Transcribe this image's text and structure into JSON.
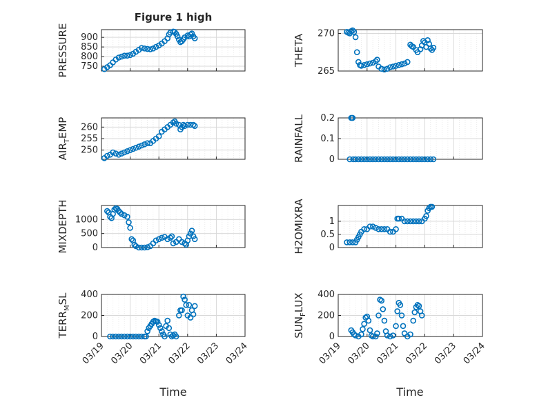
{
  "figure": {
    "title": "Figure 1 high",
    "xlabel": "Time"
  },
  "colors": {
    "series": "#0072bd",
    "axis": "#262626"
  },
  "x_ticks": [
    "03/19",
    "03/20",
    "03/21",
    "03/22",
    "03/23",
    "03/24"
  ],
  "chart_data": [
    {
      "type": "scatter",
      "ylabel": "PRESSURE",
      "xlim": [
        0,
        5
      ],
      "ylim": [
        725,
        940
      ],
      "yticks": [
        750,
        800,
        850,
        900
      ],
      "ytick_labels": [
        "750",
        "800",
        "850",
        "900"
      ],
      "points": [
        [
          0.1,
          735
        ],
        [
          0.2,
          745
        ],
        [
          0.3,
          755
        ],
        [
          0.4,
          770
        ],
        [
          0.5,
          785
        ],
        [
          0.6,
          795
        ],
        [
          0.7,
          800
        ],
        [
          0.8,
          805
        ],
        [
          0.9,
          805
        ],
        [
          1.0,
          808
        ],
        [
          1.1,
          815
        ],
        [
          1.2,
          825
        ],
        [
          1.3,
          835
        ],
        [
          1.4,
          845
        ],
        [
          1.5,
          842
        ],
        [
          1.6,
          840
        ],
        [
          1.7,
          838
        ],
        [
          1.8,
          842
        ],
        [
          1.9,
          850
        ],
        [
          2.0,
          858
        ],
        [
          2.1,
          868
        ],
        [
          2.2,
          880
        ],
        [
          2.3,
          895
        ],
        [
          2.35,
          915
        ],
        [
          2.4,
          925
        ],
        [
          2.5,
          930
        ],
        [
          2.55,
          928
        ],
        [
          2.6,
          918
        ],
        [
          2.65,
          905
        ],
        [
          2.7,
          888
        ],
        [
          2.75,
          875
        ],
        [
          2.8,
          880
        ],
        [
          2.85,
          890
        ],
        [
          2.9,
          900
        ],
        [
          3.0,
          910
        ],
        [
          3.05,
          905
        ],
        [
          3.1,
          915
        ],
        [
          3.15,
          920
        ],
        [
          3.2,
          905
        ],
        [
          3.25,
          895
        ]
      ]
    },
    {
      "type": "scatter",
      "ylabel": "THETA",
      "xlim": [
        0,
        5
      ],
      "ylim": [
        265,
        270.5
      ],
      "yticks": [
        265,
        270
      ],
      "ytick_labels": [
        "265",
        "270"
      ],
      "points": [
        [
          0.3,
          270.2
        ],
        [
          0.35,
          270.1
        ],
        [
          0.4,
          270.0
        ],
        [
          0.45,
          270.3
        ],
        [
          0.5,
          270.4
        ],
        [
          0.55,
          270.2
        ],
        [
          0.6,
          269.5
        ],
        [
          0.65,
          267.5
        ],
        [
          0.7,
          266.2
        ],
        [
          0.75,
          265.8
        ],
        [
          0.8,
          265.7
        ],
        [
          0.9,
          265.8
        ],
        [
          1.0,
          265.9
        ],
        [
          1.1,
          266.0
        ],
        [
          1.2,
          266.1
        ],
        [
          1.3,
          266.3
        ],
        [
          1.35,
          266.5
        ],
        [
          1.4,
          265.6
        ],
        [
          1.5,
          265.3
        ],
        [
          1.6,
          265.2
        ],
        [
          1.7,
          265.3
        ],
        [
          1.8,
          265.5
        ],
        [
          1.9,
          265.6
        ],
        [
          2.0,
          265.7
        ],
        [
          2.1,
          265.8
        ],
        [
          2.2,
          265.9
        ],
        [
          2.3,
          266.0
        ],
        [
          2.4,
          266.2
        ],
        [
          2.5,
          268.5
        ],
        [
          2.55,
          268.3
        ],
        [
          2.6,
          268.2
        ],
        [
          2.7,
          267.8
        ],
        [
          2.75,
          267.5
        ],
        [
          2.85,
          267.9
        ],
        [
          2.9,
          268.4
        ],
        [
          2.95,
          269.0
        ],
        [
          3.0,
          268.8
        ],
        [
          3.05,
          268.2
        ],
        [
          3.1,
          269.1
        ],
        [
          3.15,
          268.6
        ],
        [
          3.2,
          268.0
        ],
        [
          3.25,
          267.8
        ],
        [
          3.3,
          268.1
        ]
      ]
    },
    {
      "type": "scatter",
      "ylabel": "AIR_TEMP",
      "xlim": [
        0,
        5
      ],
      "ylim": [
        246,
        264
      ],
      "yticks": [
        250,
        255,
        260
      ],
      "ytick_labels": [
        "250",
        "255",
        "260"
      ],
      "points": [
        [
          0.1,
          246.5
        ],
        [
          0.2,
          247.5
        ],
        [
          0.3,
          248
        ],
        [
          0.4,
          249
        ],
        [
          0.5,
          248.5
        ],
        [
          0.6,
          248
        ],
        [
          0.7,
          248.5
        ],
        [
          0.8,
          249
        ],
        [
          0.9,
          249.5
        ],
        [
          1.0,
          250
        ],
        [
          1.1,
          250.5
        ],
        [
          1.2,
          251
        ],
        [
          1.3,
          251.5
        ],
        [
          1.4,
          252
        ],
        [
          1.5,
          252.5
        ],
        [
          1.6,
          253
        ],
        [
          1.7,
          253
        ],
        [
          1.8,
          254
        ],
        [
          1.9,
          255
        ],
        [
          2.0,
          256
        ],
        [
          2.1,
          258
        ],
        [
          2.2,
          259
        ],
        [
          2.3,
          260
        ],
        [
          2.4,
          261
        ],
        [
          2.5,
          262
        ],
        [
          2.55,
          262.5
        ],
        [
          2.6,
          261.5
        ],
        [
          2.7,
          261
        ],
        [
          2.75,
          259
        ],
        [
          2.8,
          260
        ],
        [
          2.85,
          261
        ],
        [
          2.9,
          260.5
        ],
        [
          3.0,
          261
        ],
        [
          3.1,
          261
        ],
        [
          3.2,
          261
        ],
        [
          3.25,
          260.5
        ]
      ]
    },
    {
      "type": "scatter",
      "ylabel": "RAINFALL",
      "xlim": [
        0,
        5
      ],
      "ylim": [
        0,
        0.2
      ],
      "yticks": [
        0,
        0.1,
        0.2
      ],
      "ytick_labels": [
        "0",
        "0.1",
        "0.2"
      ],
      "points": [
        [
          0.4,
          0
        ],
        [
          0.45,
          0.2
        ],
        [
          0.48,
          0.2
        ],
        [
          0.5,
          0.2
        ],
        [
          0.52,
          0
        ],
        [
          0.6,
          0
        ],
        [
          0.7,
          0
        ],
        [
          0.8,
          0
        ],
        [
          0.9,
          0
        ],
        [
          1.0,
          0
        ],
        [
          1.1,
          0
        ],
        [
          1.2,
          0
        ],
        [
          1.3,
          0
        ],
        [
          1.4,
          0
        ],
        [
          1.5,
          0
        ],
        [
          1.6,
          0
        ],
        [
          1.7,
          0
        ],
        [
          1.8,
          0
        ],
        [
          1.9,
          0
        ],
        [
          2.0,
          0
        ],
        [
          2.1,
          0
        ],
        [
          2.2,
          0
        ],
        [
          2.3,
          0
        ],
        [
          2.4,
          0
        ],
        [
          2.5,
          0
        ],
        [
          2.6,
          0
        ],
        [
          2.7,
          0
        ],
        [
          2.8,
          0
        ],
        [
          2.9,
          0
        ],
        [
          3.0,
          0
        ],
        [
          3.1,
          0
        ],
        [
          3.2,
          0
        ],
        [
          3.3,
          0
        ]
      ]
    },
    {
      "type": "scatter",
      "ylabel": "MIXDEPTH",
      "xlim": [
        0,
        5
      ],
      "ylim": [
        0,
        1500
      ],
      "yticks": [
        0,
        500,
        1000
      ],
      "ytick_labels": [
        "0",
        "500",
        "1000"
      ],
      "points": [
        [
          0.2,
          1300
        ],
        [
          0.25,
          1250
        ],
        [
          0.3,
          1100
        ],
        [
          0.35,
          1050
        ],
        [
          0.4,
          1200
        ],
        [
          0.45,
          1350
        ],
        [
          0.5,
          1400
        ],
        [
          0.55,
          1380
        ],
        [
          0.6,
          1300
        ],
        [
          0.65,
          1250
        ],
        [
          0.7,
          1200
        ],
        [
          0.8,
          1150
        ],
        [
          0.9,
          1100
        ],
        [
          0.95,
          900
        ],
        [
          1.0,
          700
        ],
        [
          1.05,
          300
        ],
        [
          1.1,
          250
        ],
        [
          1.15,
          100
        ],
        [
          1.2,
          50
        ],
        [
          1.3,
          0
        ],
        [
          1.4,
          0
        ],
        [
          1.5,
          0
        ],
        [
          1.6,
          10
        ],
        [
          1.7,
          50
        ],
        [
          1.8,
          150
        ],
        [
          1.9,
          250
        ],
        [
          2.0,
          300
        ],
        [
          2.1,
          350
        ],
        [
          2.2,
          380
        ],
        [
          2.3,
          300
        ],
        [
          2.4,
          350
        ],
        [
          2.45,
          400
        ],
        [
          2.5,
          150
        ],
        [
          2.6,
          200
        ],
        [
          2.7,
          300
        ],
        [
          2.8,
          200
        ],
        [
          2.9,
          150
        ],
        [
          2.95,
          100
        ],
        [
          3.0,
          250
        ],
        [
          3.05,
          400
        ],
        [
          3.1,
          500
        ],
        [
          3.15,
          600
        ],
        [
          3.2,
          400
        ],
        [
          3.25,
          300
        ]
      ]
    },
    {
      "type": "scatter",
      "ylabel": "H2OMIXRA",
      "xlim": [
        0,
        5
      ],
      "ylim": [
        0,
        1.6
      ],
      "yticks": [
        0,
        0.5,
        1
      ],
      "ytick_labels": [
        "0",
        "0.5",
        "1"
      ],
      "points": [
        [
          0.3,
          0.2
        ],
        [
          0.4,
          0.2
        ],
        [
          0.5,
          0.2
        ],
        [
          0.6,
          0.2
        ],
        [
          0.65,
          0.3
        ],
        [
          0.7,
          0.4
        ],
        [
          0.75,
          0.5
        ],
        [
          0.8,
          0.6
        ],
        [
          0.9,
          0.7
        ],
        [
          1.0,
          0.7
        ],
        [
          1.1,
          0.8
        ],
        [
          1.2,
          0.8
        ],
        [
          1.3,
          0.75
        ],
        [
          1.4,
          0.7
        ],
        [
          1.5,
          0.7
        ],
        [
          1.6,
          0.7
        ],
        [
          1.7,
          0.7
        ],
        [
          1.8,
          0.6
        ],
        [
          1.9,
          0.6
        ],
        [
          2.0,
          0.7
        ],
        [
          2.05,
          1.1
        ],
        [
          2.1,
          1.1
        ],
        [
          2.2,
          1.1
        ],
        [
          2.3,
          1.0
        ],
        [
          2.4,
          1.0
        ],
        [
          2.5,
          1.0
        ],
        [
          2.6,
          1.0
        ],
        [
          2.7,
          1.0
        ],
        [
          2.8,
          1.0
        ],
        [
          2.9,
          1.0
        ],
        [
          3.0,
          1.1
        ],
        [
          3.05,
          1.2
        ],
        [
          3.1,
          1.4
        ],
        [
          3.15,
          1.5
        ],
        [
          3.2,
          1.55
        ],
        [
          3.25,
          1.55
        ]
      ]
    },
    {
      "type": "scatter",
      "ylabel": "TERR_MSL",
      "xlim": [
        0,
        5
      ],
      "ylim": [
        0,
        400
      ],
      "yticks": [
        0,
        200,
        400
      ],
      "ytick_labels": [
        "0",
        "200",
        "400"
      ],
      "points": [
        [
          0.3,
          0
        ],
        [
          0.4,
          0
        ],
        [
          0.5,
          0
        ],
        [
          0.6,
          0
        ],
        [
          0.7,
          0
        ],
        [
          0.8,
          0
        ],
        [
          0.9,
          0
        ],
        [
          1.0,
          0
        ],
        [
          1.1,
          0
        ],
        [
          1.2,
          0
        ],
        [
          1.3,
          0
        ],
        [
          1.4,
          0
        ],
        [
          1.5,
          0
        ],
        [
          1.55,
          0
        ],
        [
          1.6,
          50
        ],
        [
          1.65,
          80
        ],
        [
          1.7,
          100
        ],
        [
          1.75,
          120
        ],
        [
          1.8,
          140
        ],
        [
          1.85,
          150
        ],
        [
          1.9,
          145
        ],
        [
          1.95,
          140
        ],
        [
          2.0,
          110
        ],
        [
          2.05,
          80
        ],
        [
          2.1,
          50
        ],
        [
          2.15,
          20
        ],
        [
          2.2,
          0
        ],
        [
          2.25,
          100
        ],
        [
          2.3,
          150
        ],
        [
          2.35,
          80
        ],
        [
          2.4,
          20
        ],
        [
          2.45,
          0
        ],
        [
          2.5,
          10
        ],
        [
          2.55,
          20
        ],
        [
          2.6,
          0
        ],
        [
          2.7,
          200
        ],
        [
          2.75,
          250
        ],
        [
          2.8,
          250
        ],
        [
          2.85,
          380
        ],
        [
          2.9,
          350
        ],
        [
          2.95,
          300
        ],
        [
          3.0,
          200
        ],
        [
          3.05,
          300
        ],
        [
          3.1,
          180
        ],
        [
          3.15,
          250
        ],
        [
          3.2,
          210
        ],
        [
          3.25,
          290
        ]
      ]
    },
    {
      "type": "scatter",
      "ylabel": "SUN_FLUX",
      "xlim": [
        0,
        5
      ],
      "ylim": [
        0,
        400
      ],
      "yticks": [
        0,
        200,
        400
      ],
      "ytick_labels": [
        "0",
        "200",
        "400"
      ],
      "points": [
        [
          0.45,
          60
        ],
        [
          0.5,
          40
        ],
        [
          0.55,
          20
        ],
        [
          0.6,
          10
        ],
        [
          0.7,
          0
        ],
        [
          0.8,
          20
        ],
        [
          0.85,
          70
        ],
        [
          0.9,
          120
        ],
        [
          0.95,
          180
        ],
        [
          1.0,
          190
        ],
        [
          1.05,
          150
        ],
        [
          1.1,
          60
        ],
        [
          1.15,
          10
        ],
        [
          1.2,
          0
        ],
        [
          1.3,
          0
        ],
        [
          1.35,
          30
        ],
        [
          1.4,
          200
        ],
        [
          1.45,
          350
        ],
        [
          1.5,
          340
        ],
        [
          1.55,
          260
        ],
        [
          1.6,
          150
        ],
        [
          1.65,
          50
        ],
        [
          1.7,
          10
        ],
        [
          1.8,
          0
        ],
        [
          1.9,
          10
        ],
        [
          2.0,
          100
        ],
        [
          2.05,
          240
        ],
        [
          2.1,
          320
        ],
        [
          2.15,
          300
        ],
        [
          2.2,
          200
        ],
        [
          2.25,
          100
        ],
        [
          2.3,
          30
        ],
        [
          2.4,
          0
        ],
        [
          2.5,
          20
        ],
        [
          2.6,
          150
        ],
        [
          2.65,
          230
        ],
        [
          2.7,
          280
        ],
        [
          2.75,
          300
        ],
        [
          2.8,
          290
        ],
        [
          2.85,
          240
        ],
        [
          2.9,
          200
        ]
      ]
    }
  ]
}
